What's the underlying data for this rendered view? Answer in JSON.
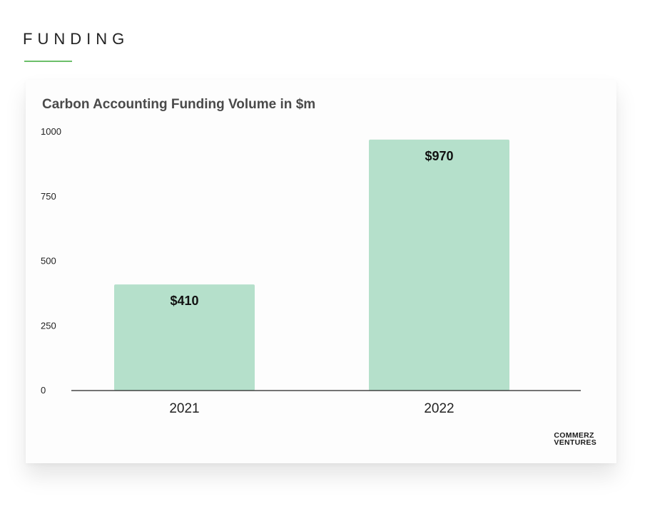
{
  "page": {
    "section_title": "FUNDING",
    "accent_color": "#6cbf6a"
  },
  "brand": {
    "line1": "COMMERZ",
    "line2": "VENTURES"
  },
  "chart_data": {
    "type": "bar",
    "title": "Carbon Accounting Funding Volume in $m",
    "xlabel": "",
    "ylabel": "",
    "categories": [
      "2021",
      "2022"
    ],
    "values": [
      410,
      970
    ],
    "data_labels": [
      "$410",
      "$970"
    ],
    "ylim": [
      0,
      1000
    ],
    "yticks": [
      0,
      250,
      500,
      750,
      1000
    ],
    "grid": false,
    "legend": "none",
    "bar_color": "#b5e0cb"
  }
}
